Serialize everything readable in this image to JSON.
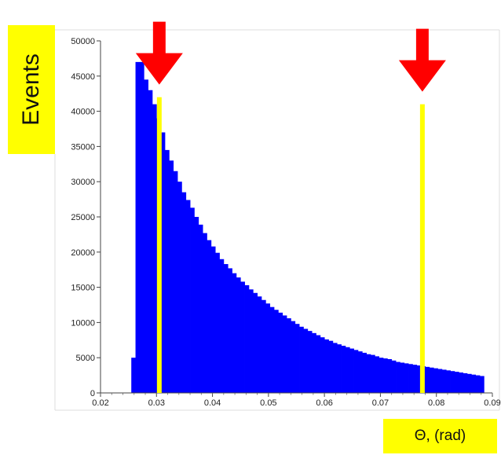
{
  "chart_data": {
    "type": "bar",
    "title": "",
    "ylabel": "Events",
    "xlabel": "Θ, (rad)",
    "xlim": [
      0.02,
      0.09
    ],
    "ylim": [
      0,
      50000
    ],
    "xticks": [
      "0.02",
      "0.03",
      "0.04",
      "0.05",
      "0.06",
      "0.07",
      "0.08",
      "0.09"
    ],
    "yticks": [
      "0",
      "5000",
      "10000",
      "15000",
      "20000",
      "25000",
      "30000",
      "35000",
      "40000",
      "45000",
      "50000"
    ],
    "grid": false,
    "bin_width": 0.00075,
    "bin_start": 0.0255,
    "values": [
      5000,
      47000,
      47000,
      44500,
      43000,
      41000,
      39000,
      37000,
      34500,
      33000,
      31500,
      30000,
      28500,
      27400,
      26300,
      25000,
      23900,
      22700,
      21700,
      20800,
      19900,
      19000,
      18300,
      17700,
      17000,
      16400,
      15800,
      15300,
      14700,
      14200,
      13700,
      13200,
      12700,
      12200,
      11800,
      11400,
      11000,
      10600,
      10200,
      9800,
      9400,
      9100,
      8800,
      8500,
      8200,
      7900,
      7600,
      7400,
      7100,
      6900,
      6700,
      6500,
      6300,
      6100,
      5900,
      5700,
      5500,
      5400,
      5200,
      5000,
      4900,
      4800,
      4600,
      4400,
      4300,
      4200,
      4100,
      4000,
      3900,
      3800,
      3700,
      3600,
      3500,
      3400,
      3300,
      3200,
      3100,
      3000,
      2900,
      2800,
      2700,
      2600,
      2500,
      2400
    ],
    "bar_color": "#0000ff",
    "markers": [
      {
        "x": 0.0305,
        "y": 42000,
        "color": "#ffff00"
      },
      {
        "x": 0.0775,
        "y": 41000,
        "color": "#ffff00"
      }
    ],
    "arrow_color": "#ff0000"
  }
}
